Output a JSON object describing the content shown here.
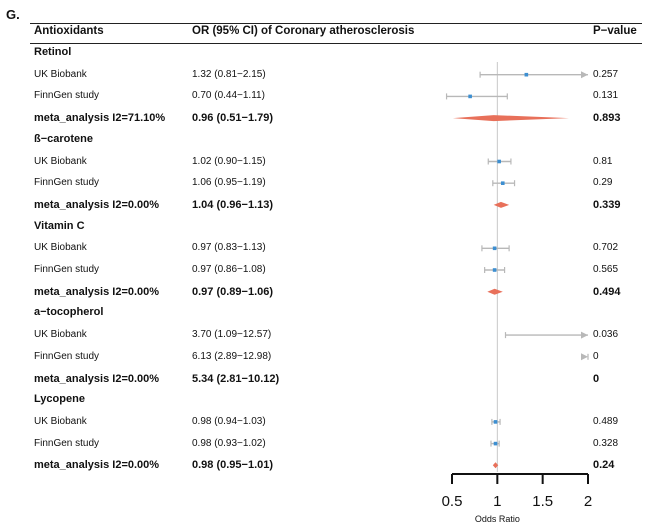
{
  "panel_label": "G.",
  "colors": {
    "study_marker": "#3d8fd1",
    "study_ci": "#b8b8b8",
    "meta_diamond": "#e8705a",
    "ref_line": "#c8c8c8",
    "text": "#111111"
  },
  "chart_data": {
    "type": "forest",
    "columns": {
      "antioxidants": "Antioxidants",
      "or_ci": "OR (95% CI) of Coronary atherosclerosis",
      "pvalue": "P−value"
    },
    "xlabel": "Odds Ratio",
    "xticks": [
      0.5,
      1,
      1.5,
      2
    ],
    "xlim": [
      0.5,
      2
    ],
    "ref_value": 1,
    "groups": [
      {
        "name": "Retinol",
        "rows": [
          {
            "label": "UK Biobank",
            "or_text": "1.32 (0.81−2.15)",
            "p": "0.257",
            "or": 1.32,
            "lo": 0.81,
            "hi": 2.15,
            "type": "study"
          },
          {
            "label": "FinnGen study",
            "or_text": "0.70 (0.44−1.11)",
            "p": "0.131",
            "or": 0.7,
            "lo": 0.44,
            "hi": 1.11,
            "type": "study"
          },
          {
            "label": "meta_analysis I2=71.10%",
            "or_text": "0.96 (0.51−1.79)",
            "p": "0.893",
            "or": 0.96,
            "lo": 0.51,
            "hi": 1.79,
            "type": "meta"
          }
        ]
      },
      {
        "name": "ß−carotene",
        "rows": [
          {
            "label": "UK Biobank",
            "or_text": "1.02 (0.90−1.15)",
            "p": "0.81",
            "or": 1.02,
            "lo": 0.9,
            "hi": 1.15,
            "type": "study"
          },
          {
            "label": "FinnGen study",
            "or_text": "1.06 (0.95−1.19)",
            "p": "0.29",
            "or": 1.06,
            "lo": 0.95,
            "hi": 1.19,
            "type": "study"
          },
          {
            "label": "meta_analysis I2=0.00%",
            "or_text": "1.04 (0.96−1.13)",
            "p": "0.339",
            "or": 1.04,
            "lo": 0.96,
            "hi": 1.13,
            "type": "meta"
          }
        ]
      },
      {
        "name": "Vitamin C",
        "rows": [
          {
            "label": "UK Biobank",
            "or_text": "0.97 (0.83−1.13)",
            "p": "0.702",
            "or": 0.97,
            "lo": 0.83,
            "hi": 1.13,
            "type": "study"
          },
          {
            "label": "FinnGen study",
            "or_text": "0.97 (0.86−1.08)",
            "p": "0.565",
            "or": 0.97,
            "lo": 0.86,
            "hi": 1.08,
            "type": "study"
          },
          {
            "label": "meta_analysis I2=0.00%",
            "or_text": "0.97 (0.89−1.06)",
            "p": "0.494",
            "or": 0.97,
            "lo": 0.89,
            "hi": 1.06,
            "type": "meta"
          }
        ]
      },
      {
        "name": "a−tocopherol",
        "rows": [
          {
            "label": "UK Biobank",
            "or_text": "3.70 (1.09−12.57)",
            "p": "0.036",
            "or": 3.7,
            "lo": 1.09,
            "hi": 12.57,
            "type": "study"
          },
          {
            "label": "FinnGen study",
            "or_text": "6.13 (2.89−12.98)",
            "p": "0",
            "or": 6.13,
            "lo": 2.89,
            "hi": 12.98,
            "type": "study"
          },
          {
            "label": "meta_analysis I2=0.00%",
            "or_text": "5.34 (2.81−10.12)",
            "p": "0",
            "or": 5.34,
            "lo": 2.81,
            "hi": 10.12,
            "type": "meta"
          }
        ]
      },
      {
        "name": "Lycopene",
        "rows": [
          {
            "label": "UK Biobank",
            "or_text": "0.98 (0.94−1.03)",
            "p": "0.489",
            "or": 0.98,
            "lo": 0.94,
            "hi": 1.03,
            "type": "study"
          },
          {
            "label": "FinnGen study",
            "or_text": "0.98 (0.93−1.02)",
            "p": "0.328",
            "or": 0.98,
            "lo": 0.93,
            "hi": 1.02,
            "type": "study"
          },
          {
            "label": "meta_analysis I2=0.00%",
            "or_text": "0.98 (0.95−1.01)",
            "p": "0.24",
            "or": 0.98,
            "lo": 0.95,
            "hi": 1.01,
            "type": "meta"
          }
        ]
      }
    ]
  }
}
